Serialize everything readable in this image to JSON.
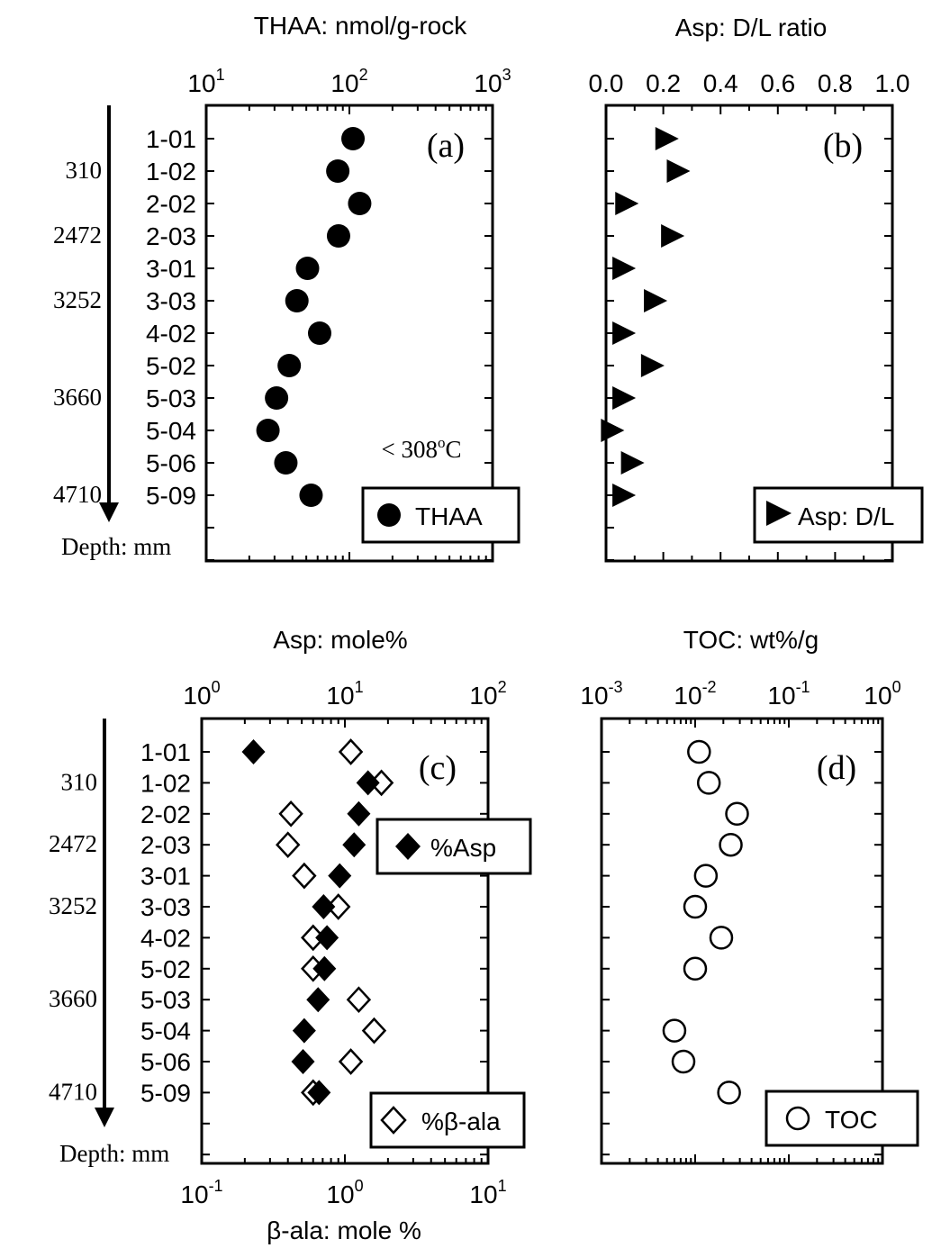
{
  "samples": [
    "1-01",
    "1-02",
    "2-02",
    "2-03",
    "3-01",
    "3-03",
    "4-02",
    "5-02",
    "5-03",
    "5-04",
    "5-06",
    "5-09"
  ],
  "depth_marks": [
    {
      "label": "310",
      "row": 1
    },
    {
      "label": "2472",
      "row": 3
    },
    {
      "label": "3252",
      "row": 5
    },
    {
      "label": "3660",
      "row": 8
    },
    {
      "label": "4710",
      "row": 11
    }
  ],
  "depth_label": "Depth: mm",
  "chart_data": [
    {
      "id": "a",
      "type": "scatter",
      "panel_label": "(a)",
      "title": "THAA: nmol/g-rock",
      "x_scale": "log",
      "xlim": [
        10,
        1000
      ],
      "tick_labels": [
        {
          "b": "10",
          "e": "1"
        },
        {
          "b": "10",
          "e": "2"
        },
        {
          "b": "10",
          "e": "3"
        }
      ],
      "annotation": {
        "text": "< 308",
        "sup": "o",
        "unit": "C"
      },
      "series": [
        {
          "name": "THAA",
          "marker": "filled-circle",
          "values": [
            106,
            83,
            118,
            84,
            51,
            43,
            62,
            38,
            31,
            27,
            36,
            54
          ]
        }
      ]
    },
    {
      "id": "b",
      "type": "scatter",
      "panel_label": "(b)",
      "title": "Asp: D/L ratio",
      "x_scale": "linear",
      "xlim": [
        0,
        1
      ],
      "tick_labels": [
        "0.0",
        "0.2",
        "0.4",
        "0.6",
        "0.8",
        "1.0"
      ],
      "series": [
        {
          "name": "Asp: D/L",
          "marker": "filled-triangle-right",
          "values": [
            0.21,
            0.25,
            0.07,
            0.23,
            0.06,
            0.17,
            0.06,
            0.16,
            0.06,
            0.02,
            0.09,
            0.06
          ]
        }
      ]
    },
    {
      "id": "c",
      "type": "scatter",
      "panel_label": "(c)",
      "title": "Asp: mole%",
      "bottom_title": "β-ala: mole %",
      "x_scale": "log",
      "xlim": [
        1,
        100
      ],
      "xlim_bottom": [
        0.1,
        10
      ],
      "tick_labels": [
        {
          "b": "10",
          "e": "0"
        },
        {
          "b": "10",
          "e": "1"
        },
        {
          "b": "10",
          "e": "2"
        }
      ],
      "tick_labels_bottom": [
        {
          "b": "10",
          "e": "-1"
        },
        {
          "b": "10",
          "e": "0"
        },
        {
          "b": "10",
          "e": "1"
        }
      ],
      "series": [
        {
          "name": "%Asp",
          "marker": "filled-diamond",
          "axis": "top",
          "values": [
            2.3,
            14.5,
            12.5,
            11.6,
            9.2,
            7.1,
            7.5,
            7.2,
            6.5,
            5.2,
            5.1,
            6.6
          ]
        },
        {
          "name": "%β-ala",
          "marker": "open-diamond",
          "axis": "bottom",
          "values": [
            1.1,
            1.8,
            0.42,
            0.4,
            0.52,
            0.9,
            0.6,
            0.6,
            1.25,
            1.6,
            1.1,
            0.6
          ]
        }
      ]
    },
    {
      "id": "d",
      "type": "scatter",
      "panel_label": "(d)",
      "title": "TOC: wt%/g",
      "x_scale": "log",
      "xlim": [
        0.001,
        1
      ],
      "tick_labels": [
        {
          "b": "10",
          "e": "-3"
        },
        {
          "b": "10",
          "e": "-2"
        },
        {
          "b": "10",
          "e": "-1"
        },
        {
          "b": "10",
          "e": "0"
        }
      ],
      "series": [
        {
          "name": "TOC",
          "marker": "open-circle",
          "values": [
            0.011,
            0.014,
            0.028,
            0.024,
            0.013,
            0.01,
            0.019,
            0.01,
            null,
            0.006,
            0.0075,
            0.023
          ]
        }
      ]
    }
  ],
  "legends": {
    "a": [
      {
        "text": "THAA"
      }
    ],
    "b": [
      {
        "text": "Asp: D/L"
      }
    ],
    "c1": [
      {
        "text": "%Asp"
      }
    ],
    "c2": [
      {
        "text": "%β-ala"
      }
    ],
    "d": [
      {
        "text": "TOC"
      }
    ]
  }
}
